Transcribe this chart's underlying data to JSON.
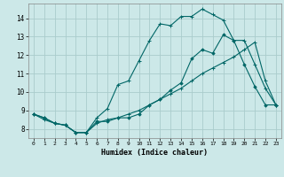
{
  "title": "",
  "xlabel": "Humidex (Indice chaleur)",
  "bg_color": "#cce8e8",
  "grid_color": "#aacccc",
  "line_color": "#006666",
  "xlim": [
    -0.5,
    23.5
  ],
  "ylim": [
    7.5,
    14.8
  ],
  "xticks": [
    0,
    1,
    2,
    3,
    4,
    5,
    6,
    7,
    8,
    9,
    10,
    11,
    12,
    13,
    14,
    15,
    16,
    17,
    18,
    19,
    20,
    21,
    22,
    23
  ],
  "yticks": [
    8,
    9,
    10,
    11,
    12,
    13,
    14
  ],
  "line1_x": [
    0,
    1,
    2,
    3,
    4,
    5,
    6,
    7,
    8,
    9,
    10,
    11,
    12,
    13,
    14,
    15,
    16,
    17,
    18,
    19,
    20,
    21,
    22,
    23
  ],
  "line1_y": [
    8.8,
    8.6,
    8.3,
    8.2,
    7.8,
    7.8,
    8.4,
    8.4,
    8.6,
    8.6,
    8.8,
    9.3,
    9.6,
    10.1,
    10.5,
    11.8,
    12.3,
    12.1,
    13.1,
    12.8,
    11.5,
    10.3,
    9.3,
    9.3
  ],
  "line2_x": [
    0,
    1,
    2,
    3,
    4,
    5,
    6,
    7,
    8,
    9,
    10,
    11,
    12,
    13,
    14,
    15,
    16,
    17,
    18,
    19,
    20,
    21,
    22,
    23
  ],
  "line2_y": [
    8.8,
    8.6,
    8.3,
    8.2,
    7.8,
    7.8,
    8.6,
    9.1,
    10.4,
    10.6,
    11.7,
    12.8,
    13.7,
    13.6,
    14.1,
    14.1,
    14.5,
    14.2,
    13.9,
    12.8,
    12.8,
    11.5,
    10.2,
    9.3
  ],
  "line3_x": [
    0,
    1,
    2,
    3,
    4,
    5,
    6,
    7,
    8,
    9,
    10,
    11,
    12,
    13,
    14,
    15,
    16,
    17,
    18,
    19,
    20,
    21,
    22,
    23
  ],
  "line3_y": [
    8.8,
    8.5,
    8.3,
    8.2,
    7.8,
    7.8,
    8.3,
    8.5,
    8.6,
    8.8,
    9.0,
    9.3,
    9.6,
    9.9,
    10.2,
    10.6,
    11.0,
    11.3,
    11.6,
    11.9,
    12.3,
    12.7,
    10.6,
    9.3
  ],
  "lw": 0.8,
  "ms": 2.5
}
